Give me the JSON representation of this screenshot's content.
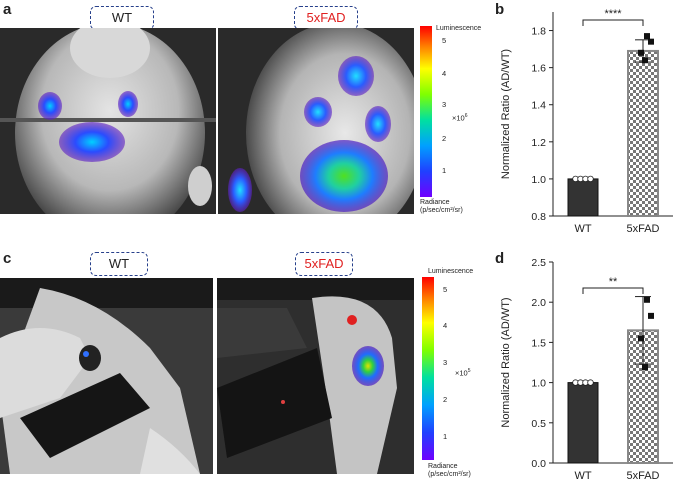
{
  "panels": {
    "a": {
      "letter": "a",
      "labels": [
        "WT",
        "5xFAD"
      ],
      "colorbar": {
        "title": "Luminescence",
        "ticks": [
          "5",
          "4",
          "3",
          "2",
          "1"
        ],
        "exponent": "×10",
        "exponent_power": "6",
        "radiance_line1": "Radiance",
        "radiance_line2": "(p/sec/cm²/sr)"
      }
    },
    "c": {
      "letter": "c",
      "labels": [
        "WT",
        "5xFAD"
      ],
      "colorbar": {
        "title": "Luminescence",
        "ticks": [
          "5",
          "4",
          "3",
          "2",
          "1"
        ],
        "exponent": "×10",
        "exponent_power": "5",
        "radiance_line1": "Radiance",
        "radiance_line2": "(p/sec/cm²/sr)"
      }
    },
    "b": {
      "letter": "b"
    },
    "d": {
      "letter": "d"
    }
  },
  "chart_data": [
    {
      "panel": "b",
      "type": "bar",
      "categories": [
        "WT",
        "5xFAD"
      ],
      "values": [
        1.0,
        1.69
      ],
      "error_bars": [
        0.0,
        0.06
      ],
      "points": {
        "WT": [
          1.0,
          1.0,
          1.0,
          1.0
        ],
        "5xFAD": [
          1.77,
          1.74,
          1.68,
          1.64
        ]
      },
      "ylabel": "Normalized Ratio (AD/WT)",
      "ylim": [
        0.8,
        1.9
      ],
      "yticks": [
        "0.8",
        "1.0",
        "1.2",
        "1.4",
        "1.6",
        "1.8"
      ],
      "significance": "****",
      "bar_styles": [
        "solid-dark",
        "checkered"
      ]
    },
    {
      "panel": "d",
      "type": "bar",
      "categories": [
        "WT",
        "5xFAD"
      ],
      "values": [
        1.0,
        1.65
      ],
      "error_bars": [
        0.0,
        0.42
      ],
      "points": {
        "WT": [
          1.0,
          1.0,
          1.0,
          1.0
        ],
        "5xFAD": [
          2.03,
          1.83,
          1.55,
          1.19
        ]
      },
      "ylabel": "Normalized Ratio (AD/WT)",
      "ylim": [
        0.0,
        2.5
      ],
      "yticks": [
        "0.0",
        "0.5",
        "1.0",
        "1.5",
        "2.0",
        "2.5"
      ],
      "significance": "**",
      "bar_styles": [
        "solid-dark",
        "checkered"
      ]
    }
  ]
}
